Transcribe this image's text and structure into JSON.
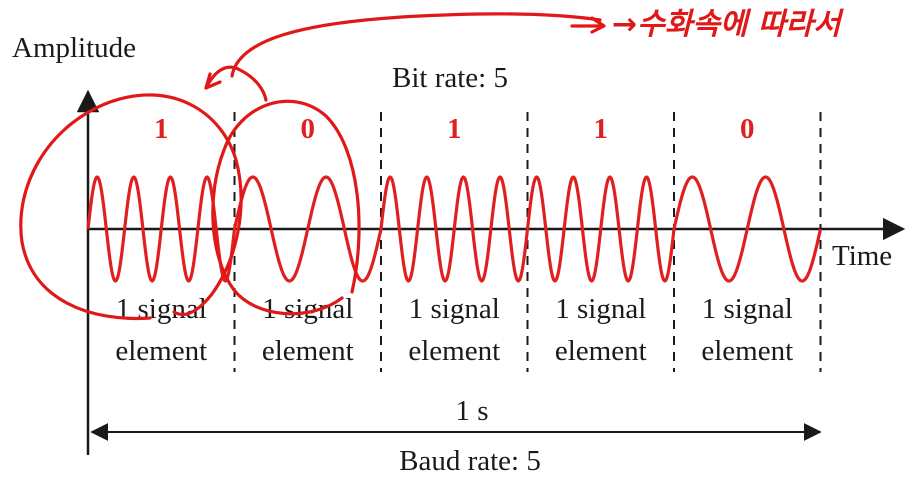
{
  "diagram": {
    "y_axis_label": "Amplitude",
    "x_axis_label": "Time",
    "bit_rate_label": "Bit rate: 5",
    "baud_rate_label": "Baud rate: 5",
    "duration_label": "1 s",
    "bits": [
      "1",
      "0",
      "1",
      "1",
      "0"
    ],
    "cycles_per_segment": [
      4,
      2,
      4,
      4,
      2
    ],
    "signal_element_line1": "1 signal",
    "signal_element_line2": "element",
    "colors": {
      "signal": "#e02020",
      "axis": "#1a1a1a",
      "annotation": "#e01818"
    }
  },
  "annotation": {
    "handwriting_text": "→수화속에 따라서"
  }
}
